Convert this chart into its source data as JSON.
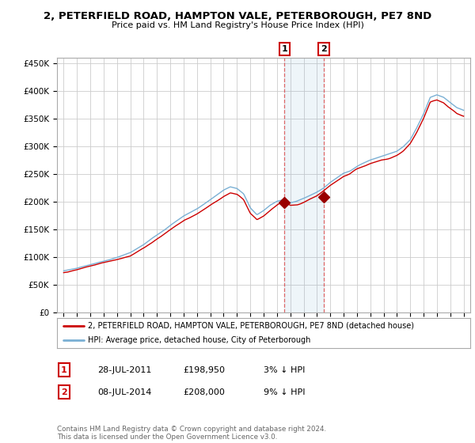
{
  "title": "2, PETERFIELD ROAD, HAMPTON VALE, PETERBOROUGH, PE7 8ND",
  "subtitle": "Price paid vs. HM Land Registry's House Price Index (HPI)",
  "ylabel_ticks": [
    "£0",
    "£50K",
    "£100K",
    "£150K",
    "£200K",
    "£250K",
    "£300K",
    "£350K",
    "£400K",
    "£450K"
  ],
  "ytick_vals": [
    0,
    50000,
    100000,
    150000,
    200000,
    250000,
    300000,
    350000,
    400000,
    450000
  ],
  "ylim": [
    0,
    460000
  ],
  "sale1": {
    "date": "28-JUL-2011",
    "price": "£198,950",
    "pct": "3% ↓ HPI",
    "label": "1"
  },
  "sale2": {
    "date": "08-JUL-2014",
    "price": "£208,000",
    "pct": "9% ↓ HPI",
    "label": "2"
  },
  "sale1_x": 2011.57,
  "sale2_x": 2014.52,
  "sale1_y": 198950,
  "sale2_y": 208000,
  "hpi_color": "#7ab0d4",
  "price_color": "#cc0000",
  "sale_marker_color": "#990000",
  "background_color": "#ffffff",
  "grid_color": "#cccccc",
  "legend_line1": "2, PETERFIELD ROAD, HAMPTON VALE, PETERBOROUGH, PE7 8ND (detached house)",
  "legend_line2": "HPI: Average price, detached house, City of Peterborough",
  "footnote": "Contains HM Land Registry data © Crown copyright and database right 2024.\nThis data is licensed under the Open Government Licence v3.0.",
  "xlim_start": 1994.5,
  "xlim_end": 2025.5,
  "xtick_years": [
    1995,
    1996,
    1997,
    1998,
    1999,
    2000,
    2001,
    2002,
    2003,
    2004,
    2005,
    2006,
    2007,
    2008,
    2009,
    2010,
    2011,
    2012,
    2013,
    2014,
    2015,
    2016,
    2017,
    2018,
    2019,
    2020,
    2021,
    2022,
    2023,
    2024,
    2025
  ]
}
